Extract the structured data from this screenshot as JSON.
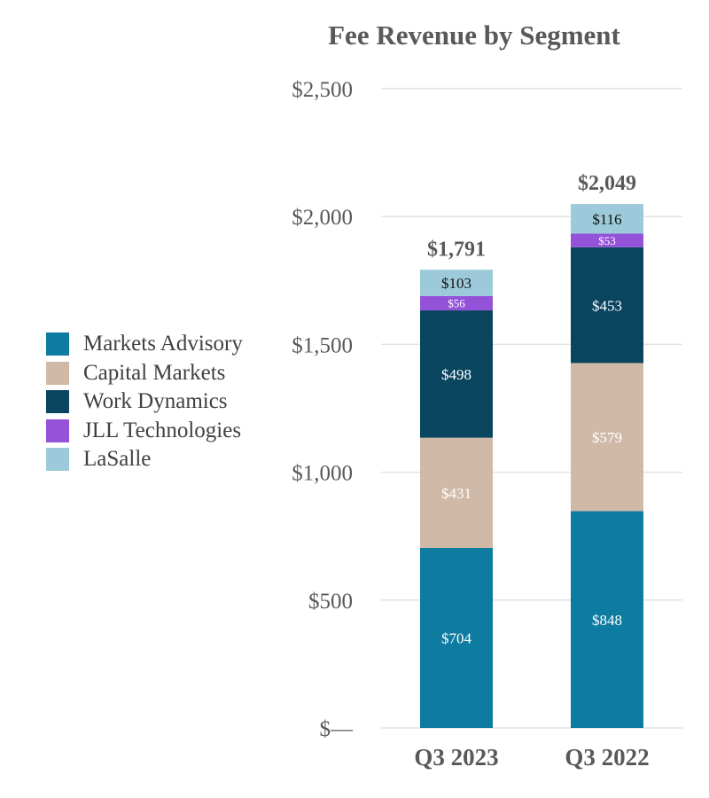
{
  "chart_data": {
    "type": "stacked-bar",
    "title": "Fee Revenue by Segment",
    "categories": [
      "Q3 2023",
      "Q3 2022"
    ],
    "ylim": [
      0,
      2500
    ],
    "yticks": [
      0,
      500,
      1000,
      1500,
      2000,
      2500
    ],
    "ytick_labels": [
      "$—",
      "$500",
      "$1,000",
      "$1,500",
      "$2,000",
      "$2,500"
    ],
    "grid": true,
    "legend_position": "left",
    "series": [
      {
        "name": "Markets Advisory",
        "color": "#0e7ba0",
        "values": [
          704,
          848
        ],
        "labels": [
          "$704",
          "$848"
        ],
        "label_color": "#ffffff"
      },
      {
        "name": "Capital Markets",
        "color": "#d1b9a8",
        "values": [
          431,
          579
        ],
        "labels": [
          "$431",
          "$579"
        ],
        "label_color": "#ffffff"
      },
      {
        "name": "Work Dynamics",
        "color": "#0a4560",
        "values": [
          498,
          453
        ],
        "labels": [
          "$498",
          "$453"
        ],
        "label_color": "#ffffff"
      },
      {
        "name": "JLL Technologies",
        "color": "#9452d9",
        "values": [
          56,
          53
        ],
        "labels": [
          "$56",
          "$53"
        ],
        "label_color": "#ffffff"
      },
      {
        "name": "LaSalle",
        "color": "#9ccada",
        "values": [
          103,
          116
        ],
        "labels": [
          "$103",
          "$116"
        ],
        "label_color": "#111111"
      }
    ],
    "totals": [
      1791,
      2049
    ],
    "total_labels": [
      "$1,791",
      "$2,049"
    ]
  }
}
